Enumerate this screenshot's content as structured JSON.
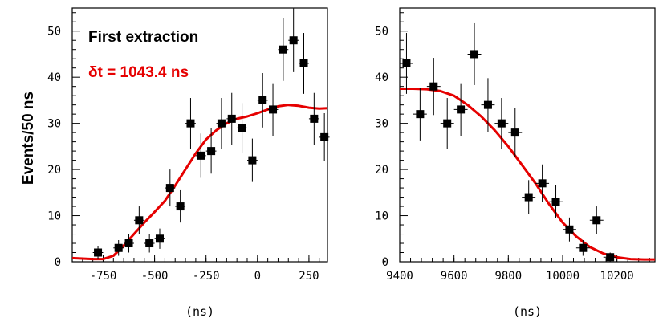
{
  "ylabel": "Events/50 ns",
  "chart_data": [
    {
      "type": "scatter",
      "xlabel": "(ns)",
      "xlim": [
        -900,
        340
      ],
      "ylim": [
        0,
        55
      ],
      "xticks": [
        -750,
        -500,
        -250,
        0,
        250
      ],
      "xtick_labels": [
        "-750",
        "-500",
        "-250",
        "0",
        "250"
      ],
      "yticks": [
        0,
        10,
        20,
        30,
        40,
        50
      ],
      "ytick_labels": [
        "0",
        "10",
        "20",
        "30",
        "40",
        "50"
      ],
      "annotations": [
        "First extraction",
        "δt = 1043.4 ns"
      ],
      "points": [
        {
          "x": -775,
          "y": 2,
          "err": 1.4
        },
        {
          "x": -675,
          "y": 3,
          "err": 1.7
        },
        {
          "x": -625,
          "y": 4,
          "err": 2.0
        },
        {
          "x": -575,
          "y": 9,
          "err": 3.0
        },
        {
          "x": -525,
          "y": 4,
          "err": 2.0
        },
        {
          "x": -475,
          "y": 5,
          "err": 2.2
        },
        {
          "x": -425,
          "y": 16,
          "err": 4.0
        },
        {
          "x": -375,
          "y": 12,
          "err": 3.5
        },
        {
          "x": -325,
          "y": 30,
          "err": 5.5
        },
        {
          "x": -275,
          "y": 23,
          "err": 4.8
        },
        {
          "x": -225,
          "y": 24,
          "err": 4.9
        },
        {
          "x": -175,
          "y": 30,
          "err": 5.5
        },
        {
          "x": -125,
          "y": 31,
          "err": 5.6
        },
        {
          "x": -75,
          "y": 29,
          "err": 5.4
        },
        {
          "x": -25,
          "y": 22,
          "err": 4.7
        },
        {
          "x": 25,
          "y": 35,
          "err": 5.9
        },
        {
          "x": 75,
          "y": 33,
          "err": 5.7
        },
        {
          "x": 125,
          "y": 46,
          "err": 6.8
        },
        {
          "x": 175,
          "y": 48,
          "err": 6.9
        },
        {
          "x": 225,
          "y": 43,
          "err": 6.6
        },
        {
          "x": 275,
          "y": 31,
          "err": 5.6
        },
        {
          "x": 325,
          "y": 27,
          "err": 5.2
        }
      ],
      "fit": {
        "color": "#e60000",
        "x": [
          -900,
          -800,
          -750,
          -700,
          -650,
          -600,
          -550,
          -500,
          -450,
          -400,
          -350,
          -300,
          -250,
          -200,
          -150,
          -100,
          -50,
          0,
          50,
          100,
          150,
          200,
          250,
          300,
          340
        ],
        "y": [
          0.8,
          0.6,
          0.6,
          1.3,
          3.5,
          6.0,
          8.5,
          10.8,
          13.2,
          16.5,
          20.0,
          23.5,
          26.5,
          28.5,
          30.0,
          31.0,
          31.5,
          32.2,
          33.0,
          33.7,
          34.0,
          33.8,
          33.4,
          33.2,
          33.3
        ]
      }
    },
    {
      "type": "scatter",
      "xlabel": "(ns)",
      "xlim": [
        9400,
        10340
      ],
      "ylim": [
        0,
        55
      ],
      "xticks": [
        9400,
        9600,
        9800,
        10000,
        10200
      ],
      "xtick_labels": [
        "9400",
        "9600",
        "9800",
        "10000",
        "10200"
      ],
      "yticks": [
        0,
        10,
        20,
        30,
        40,
        50
      ],
      "ytick_labels": [
        "0",
        "10",
        "20",
        "30",
        "40",
        "50"
      ],
      "points": [
        {
          "x": 9425,
          "y": 43,
          "err": 6.6
        },
        {
          "x": 9475,
          "y": 32,
          "err": 5.7
        },
        {
          "x": 9525,
          "y": 38,
          "err": 6.2
        },
        {
          "x": 9575,
          "y": 30,
          "err": 5.5
        },
        {
          "x": 9625,
          "y": 33,
          "err": 5.7
        },
        {
          "x": 9675,
          "y": 45,
          "err": 6.7
        },
        {
          "x": 9725,
          "y": 34,
          "err": 5.8
        },
        {
          "x": 9775,
          "y": 30,
          "err": 5.5
        },
        {
          "x": 9825,
          "y": 28,
          "err": 5.3
        },
        {
          "x": 9875,
          "y": 14,
          "err": 3.7
        },
        {
          "x": 9925,
          "y": 17,
          "err": 4.1
        },
        {
          "x": 9975,
          "y": 13,
          "err": 3.6
        },
        {
          "x": 10025,
          "y": 7,
          "err": 2.6
        },
        {
          "x": 10075,
          "y": 3,
          "err": 1.7
        },
        {
          "x": 10125,
          "y": 9,
          "err": 3.0
        },
        {
          "x": 10175,
          "y": 1,
          "err": 1.0
        }
      ],
      "fit": {
        "color": "#e60000",
        "x": [
          9400,
          9450,
          9500,
          9550,
          9600,
          9650,
          9700,
          9750,
          9800,
          9850,
          9900,
          9950,
          10000,
          10050,
          10100,
          10150,
          10200,
          10250,
          10300,
          10340
        ],
        "y": [
          37.5,
          37.5,
          37.4,
          37.0,
          36.0,
          34.0,
          31.5,
          28.5,
          25.0,
          21.0,
          17.0,
          12.5,
          8.5,
          5.5,
          3.2,
          1.8,
          1.0,
          0.6,
          0.5,
          0.5
        ]
      }
    }
  ]
}
